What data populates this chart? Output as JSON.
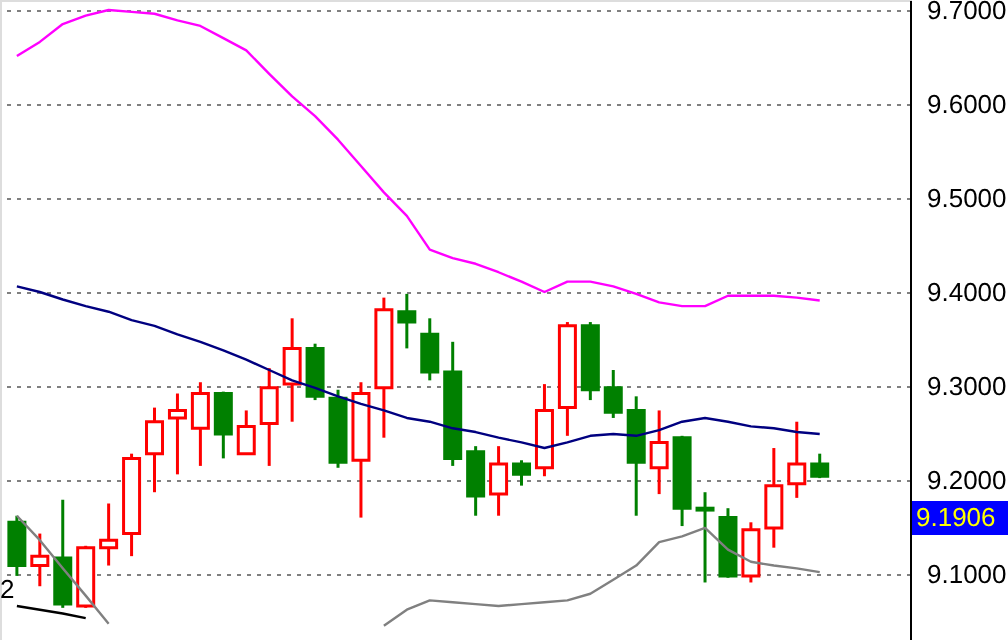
{
  "chart_data": {
    "type": "candlestick",
    "categories": [
      null,
      null,
      null,
      null,
      null,
      null,
      null,
      null,
      null,
      null,
      null,
      null,
      null,
      null,
      null,
      null,
      null,
      null,
      null,
      null,
      null,
      null,
      null,
      null,
      null,
      null,
      null,
      null,
      null,
      null,
      null,
      null,
      null,
      null,
      null,
      null
    ],
    "ohlc": [
      [
        9.155,
        9.162,
        9.098,
        9.109
      ],
      [
        9.109,
        9.143,
        9.087,
        9.119
      ],
      [
        9.117,
        9.179,
        9.064,
        9.068
      ],
      [
        9.066,
        9.13,
        9.064,
        9.128
      ],
      [
        9.128,
        9.175,
        9.109,
        9.136
      ],
      [
        9.143,
        9.228,
        9.119,
        9.223
      ],
      [
        9.228,
        9.277,
        9.187,
        9.262
      ],
      [
        9.266,
        9.292,
        9.206,
        9.274
      ],
      [
        9.255,
        9.304,
        9.215,
        9.292
      ],
      [
        9.292,
        9.294,
        9.223,
        9.249
      ],
      [
        9.228,
        9.274,
        9.228,
        9.257
      ],
      [
        9.26,
        9.319,
        9.215,
        9.298
      ],
      [
        9.302,
        9.372,
        9.262,
        9.34
      ],
      [
        9.34,
        9.345,
        9.285,
        9.289
      ],
      [
        9.287,
        9.296,
        9.213,
        9.219
      ],
      [
        9.221,
        9.304,
        9.16,
        9.292
      ],
      [
        9.298,
        9.394,
        9.245,
        9.381
      ],
      [
        9.379,
        9.398,
        9.34,
        9.368
      ],
      [
        9.355,
        9.372,
        9.306,
        9.315
      ],
      [
        9.315,
        9.347,
        9.215,
        9.223
      ],
      [
        9.23,
        9.236,
        9.162,
        9.183
      ],
      [
        9.185,
        9.236,
        9.162,
        9.217
      ],
      [
        9.217,
        9.221,
        9.194,
        9.206
      ],
      [
        9.213,
        9.302,
        9.204,
        9.274
      ],
      [
        9.277,
        9.368,
        9.247,
        9.364
      ],
      [
        9.364,
        9.368,
        9.285,
        9.296
      ],
      [
        9.298,
        9.317,
        9.266,
        9.272
      ],
      [
        9.274,
        9.289,
        9.162,
        9.219
      ],
      [
        9.213,
        9.274,
        9.185,
        9.24
      ],
      [
        9.245,
        9.247,
        9.151,
        9.17
      ],
      [
        9.17,
        9.187,
        9.091,
        9.168
      ],
      [
        9.16,
        9.17,
        9.096,
        9.098
      ],
      [
        9.098,
        9.155,
        9.091,
        9.147
      ],
      [
        9.149,
        9.234,
        9.128,
        9.194
      ],
      [
        9.196,
        9.262,
        9.181,
        9.217
      ],
      [
        9.217,
        9.228,
        9.202,
        9.204
      ]
    ],
    "colors": [
      "#008000",
      "#ff0000",
      "#008000",
      "#ff0000",
      "#ff0000",
      "#ff0000",
      "#ff0000",
      "#ff0000",
      "#ff0000",
      "#008000",
      "#ff0000",
      "#ff0000",
      "#ff0000",
      "#008000",
      "#008000",
      "#ff0000",
      "#ff0000",
      "#008000",
      "#008000",
      "#008000",
      "#008000",
      "#ff0000",
      "#008000",
      "#ff0000",
      "#ff0000",
      "#008000",
      "#008000",
      "#008000",
      "#ff0000",
      "#008000",
      "#008000",
      "#008000",
      "#ff0000",
      "#ff0000",
      "#ff0000",
      "#008000"
    ],
    "series": [
      {
        "type": "line",
        "color": "#ff00ff",
        "values": [
          9.651,
          9.666,
          9.685,
          9.694,
          9.7,
          9.698,
          9.696,
          9.689,
          9.683,
          9.67,
          9.657,
          9.632,
          9.608,
          9.587,
          9.562,
          9.534,
          9.506,
          9.481,
          9.445,
          9.436,
          9.43,
          9.421,
          9.411,
          9.4,
          9.411,
          9.411,
          9.406,
          9.398,
          9.389,
          9.385,
          9.385,
          9.396,
          9.396,
          9.396,
          9.394,
          9.391
        ]
      },
      {
        "type": "line",
        "color": "#000080",
        "values": [
          9.406,
          9.4,
          9.392,
          9.385,
          9.379,
          9.37,
          9.364,
          9.355,
          9.347,
          9.338,
          9.328,
          9.317,
          9.306,
          9.298,
          9.289,
          9.281,
          9.274,
          9.266,
          9.262,
          9.255,
          9.251,
          9.245,
          9.24,
          9.234,
          9.24,
          9.247,
          9.249,
          9.247,
          9.253,
          9.262,
          9.266,
          9.262,
          9.257,
          9.255,
          9.251,
          9.249
        ]
      },
      {
        "type": "line",
        "color": "#808080",
        "values": [
          9.162,
          9.136,
          9.106,
          9.077,
          9.047,
          null,
          null,
          null,
          null,
          null,
          null,
          null,
          null,
          null,
          null,
          null,
          9.045,
          9.062,
          9.072,
          9.07,
          9.068,
          9.066,
          9.068,
          9.07,
          9.072,
          9.079,
          9.094,
          9.109,
          9.134,
          9.14,
          9.149,
          9.126,
          9.113,
          9.109,
          9.106,
          9.102
        ]
      },
      {
        "type": "line",
        "color": "#000000",
        "values": [
          9.066,
          9.062,
          9.058,
          9.053,
          null,
          null,
          null,
          null,
          null,
          null,
          null,
          null,
          null,
          null,
          null,
          null,
          null,
          null,
          null,
          null,
          null,
          null,
          null,
          null,
          null,
          null,
          null,
          null,
          null,
          null,
          null,
          null,
          null,
          null,
          null,
          null
        ]
      }
    ],
    "ylim": [
      9.0298,
      9.7106
    ],
    "yticks": [
      {
        "value": 9.1,
        "label": "9.1000"
      },
      {
        "value": 9.2,
        "label": "9.2000"
      },
      {
        "value": 9.3,
        "label": "9.3000"
      },
      {
        "value": 9.4,
        "label": "9.4000"
      },
      {
        "value": 9.5,
        "label": "9.5000"
      },
      {
        "value": 9.6,
        "label": "9.6000"
      },
      {
        "value": 9.7,
        "label": "9.7000"
      }
    ],
    "grid": "y",
    "annotations": [
      "2",
      "9.1906"
    ]
  }
}
